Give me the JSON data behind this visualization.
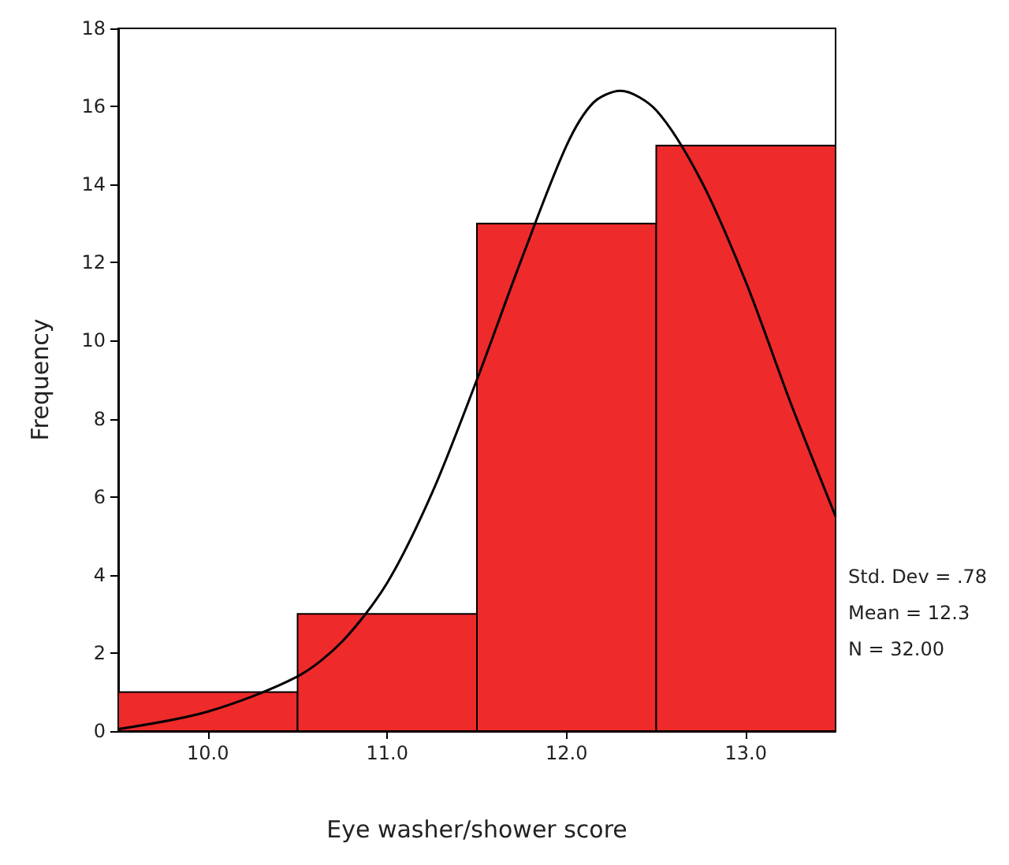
{
  "chart_data": {
    "type": "histogram",
    "xlabel": "Eye washer/shower score",
    "ylabel": "Frequency",
    "bins": [
      9.5,
      10.5,
      11.5,
      12.5,
      13.5
    ],
    "values": [
      1,
      3,
      13,
      15
    ],
    "color": "#ee2a2a",
    "series": [
      {
        "type": "line",
        "color": "#000000",
        "x": [
          9.5,
          10,
          10.5,
          10.75,
          11,
          11.25,
          11.5,
          11.75,
          12,
          12.15,
          12.3,
          12.5,
          12.75,
          13,
          13.25,
          13.5
        ],
        "values": [
          0.05,
          0.5,
          1.4,
          2.3,
          3.8,
          6.1,
          9.0,
          12.1,
          15.0,
          16.1,
          16.4,
          15.9,
          14.1,
          11.5,
          8.4,
          5.5
        ]
      }
    ],
    "xlim": [
      9.5,
      13.5
    ],
    "xticks": [
      {
        "value": 10,
        "label": "10.0"
      },
      {
        "value": 11,
        "label": "11.0"
      },
      {
        "value": 12,
        "label": "12.0"
      },
      {
        "value": 13,
        "label": "13.0"
      }
    ],
    "ylim": [
      0,
      18
    ],
    "yticks": [
      0,
      2,
      4,
      6,
      8,
      10,
      12,
      14,
      16,
      18
    ],
    "grid": false,
    "marker": "none",
    "line_style": "solid",
    "annotations": [
      "Std. Dev = .78",
      "Mean = 12.3",
      "N = 32.00"
    ]
  }
}
